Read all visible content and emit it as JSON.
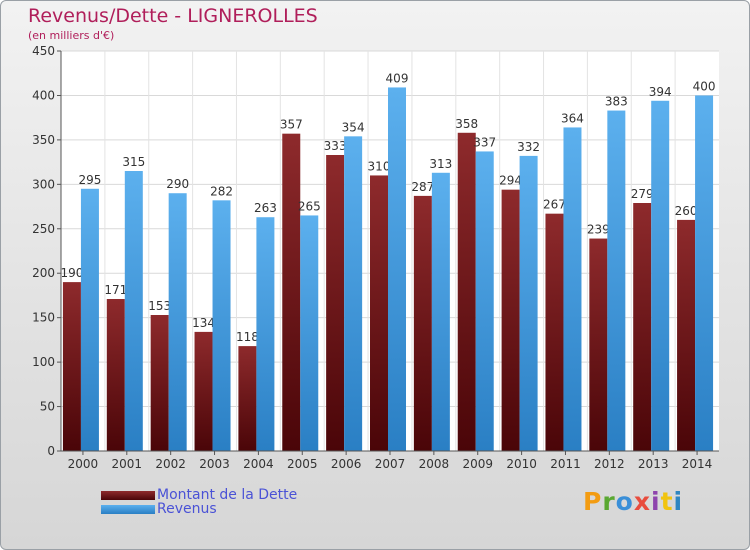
{
  "chart_data": {
    "type": "bar",
    "title": "Revenus/Dette - LIGNEROLLES",
    "subtitle": "(en milliers d'€)",
    "categories": [
      "2000",
      "2001",
      "2002",
      "2003",
      "2004",
      "2005",
      "2006",
      "2007",
      "2008",
      "2009",
      "2010",
      "2011",
      "2012",
      "2013",
      "2014"
    ],
    "series": [
      {
        "name": "Montant de la Dette",
        "color": "#7a1518",
        "values": [
          190,
          171,
          153,
          134,
          118,
          357,
          333,
          310,
          287,
          358,
          294,
          267,
          239,
          279,
          260
        ]
      },
      {
        "name": "Revenus",
        "color": "#4aa3e6",
        "values": [
          295,
          315,
          290,
          282,
          263,
          265,
          354,
          409,
          313,
          337,
          332,
          364,
          383,
          394,
          400
        ]
      }
    ],
    "ylim": [
      0,
      450
    ],
    "yticks": [
      0,
      50,
      100,
      150,
      200,
      250,
      300,
      350,
      400,
      450
    ],
    "grid": true,
    "legend_position": "bottom-left"
  },
  "logo": {
    "text": "Proxiti",
    "colors": [
      "#f39c12",
      "#5aa832",
      "#3a8fd8",
      "#e84c3d",
      "#8e44ad",
      "#f1c40f",
      "#2e86c1"
    ]
  }
}
